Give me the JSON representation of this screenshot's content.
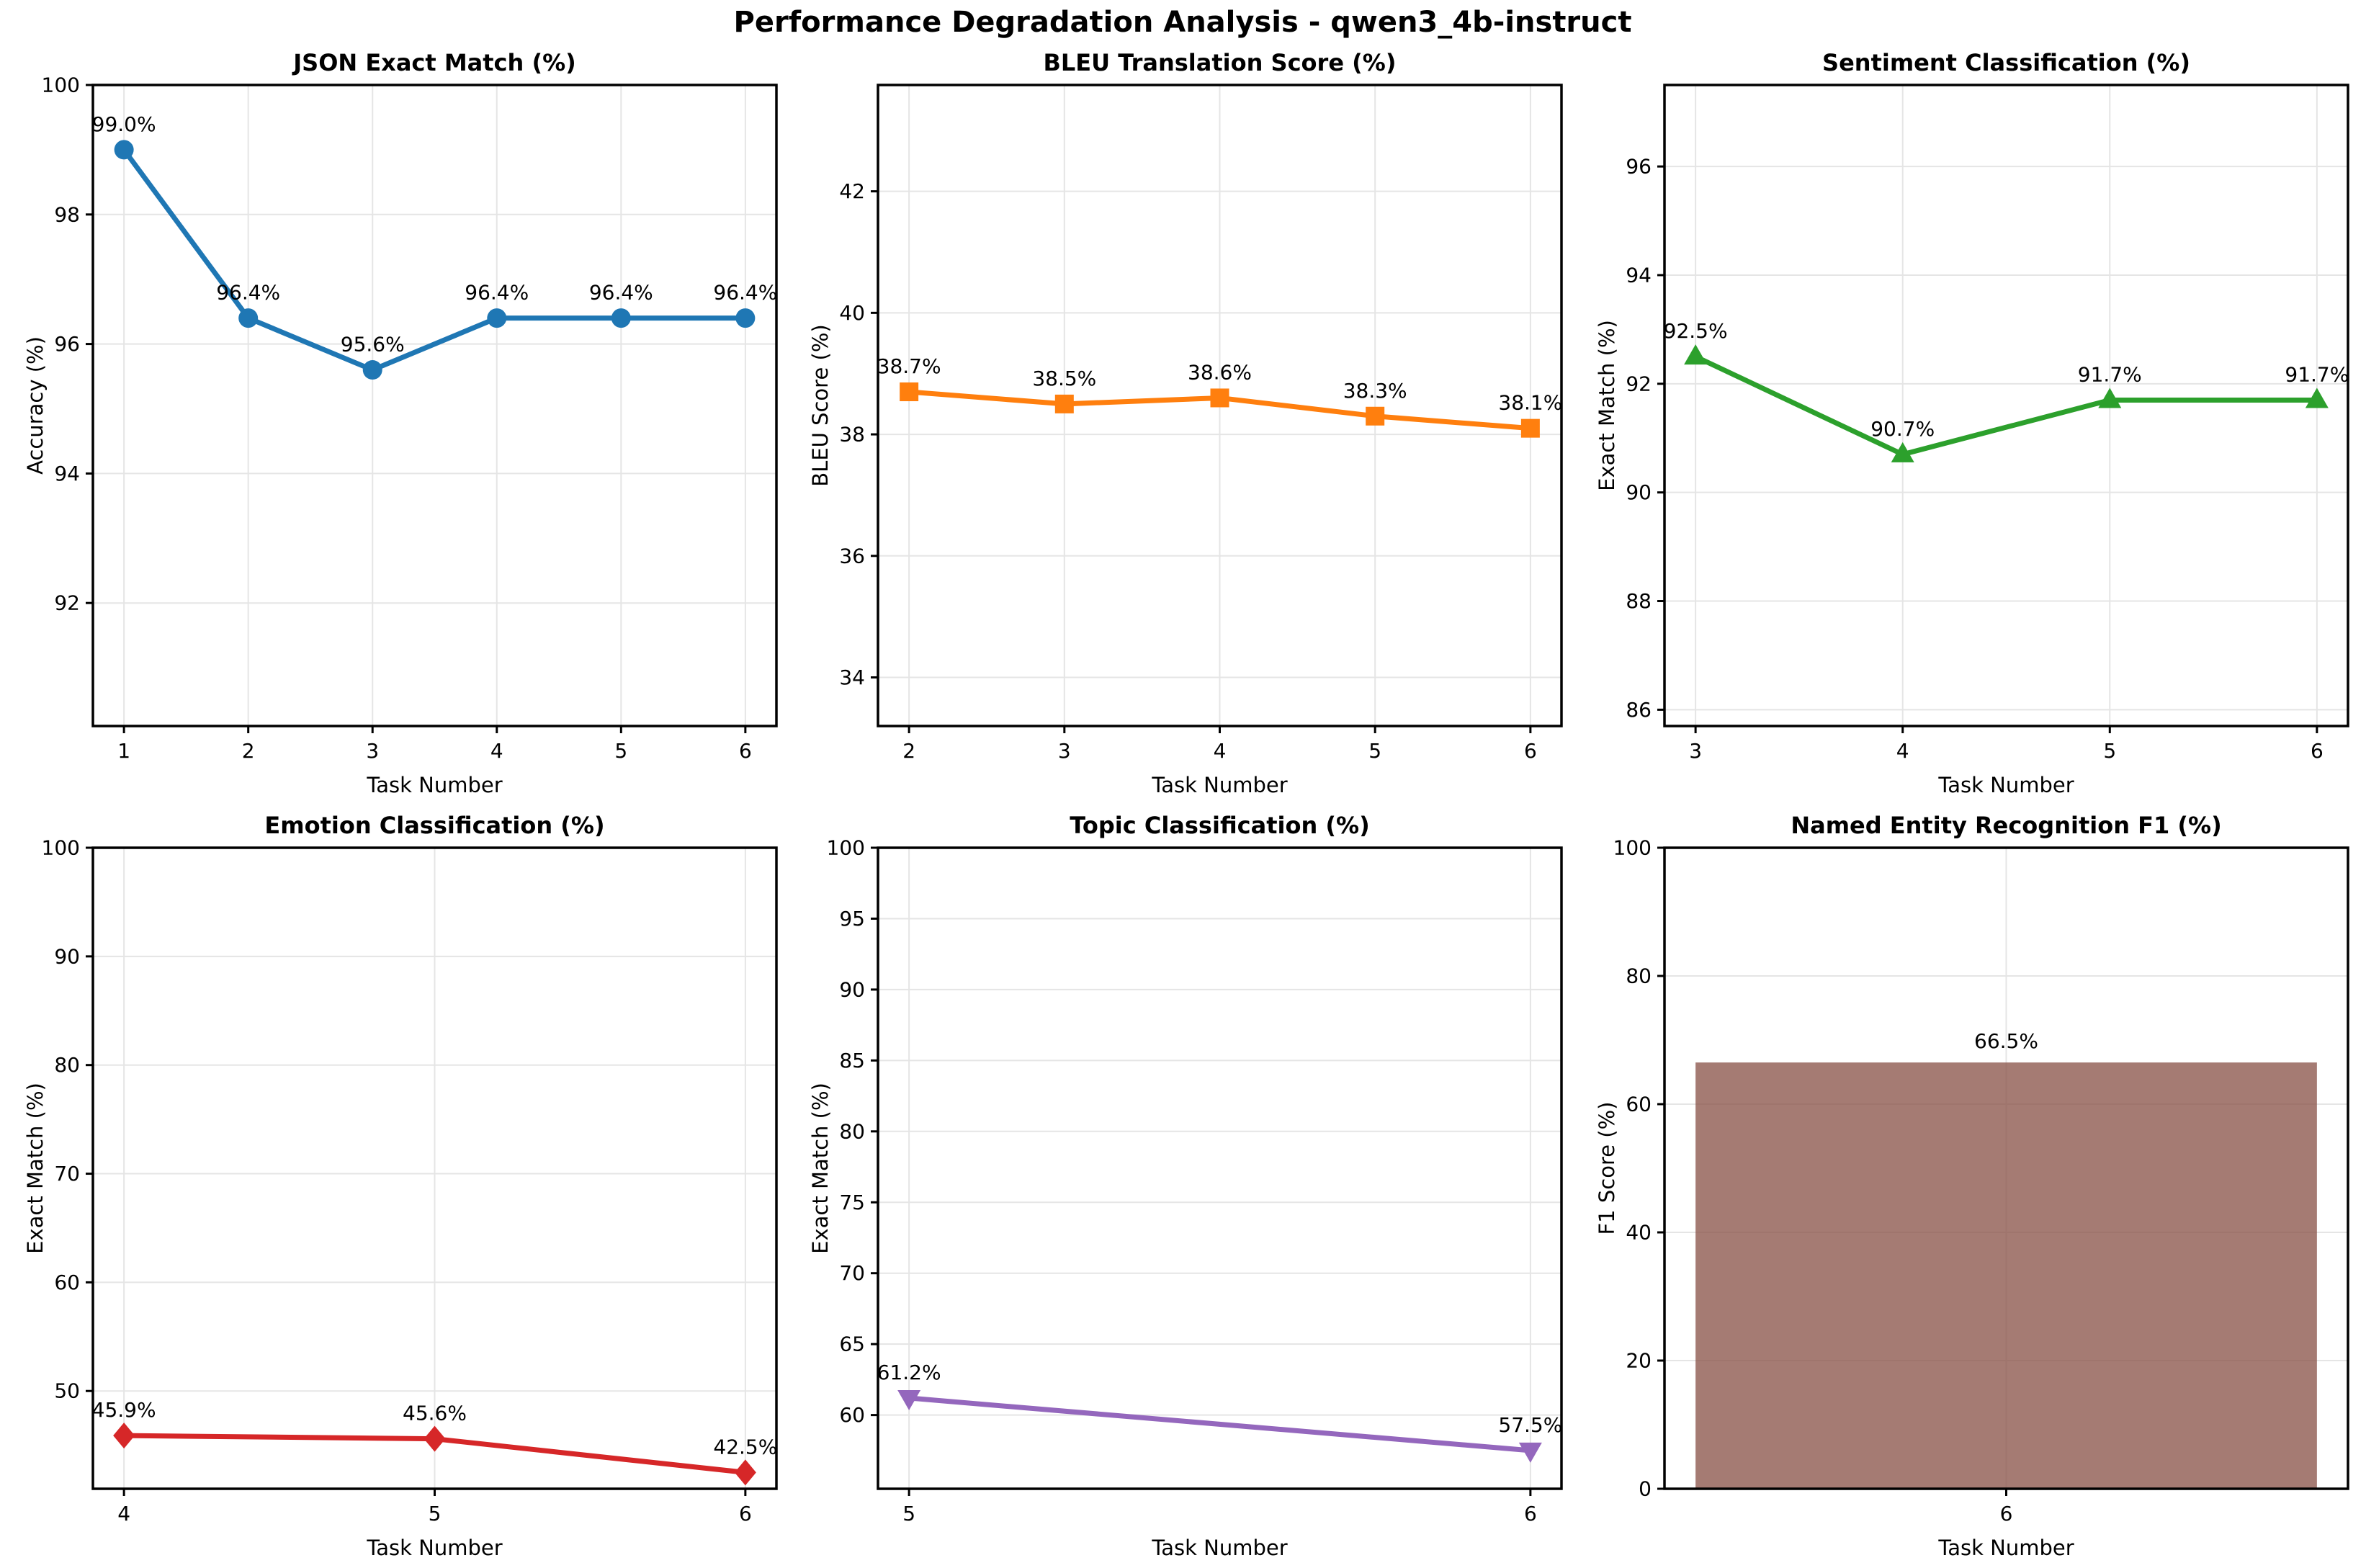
{
  "figure": {
    "title": "Performance Degradation Analysis - qwen3_4b-instruct",
    "xlabel_shared": "Task Number"
  },
  "chart_data": [
    {
      "type": "line",
      "title": "JSON Exact Match (%)",
      "xlabel": "Task Number",
      "ylabel": "Accuracy (%)",
      "marker": "circle",
      "color": "#1f77b4",
      "x": [
        1,
        2,
        3,
        4,
        5,
        6
      ],
      "values": [
        99.0,
        96.4,
        95.6,
        96.4,
        96.4,
        96.4
      ],
      "point_labels": [
        "99.0%",
        "96.4%",
        "95.6%",
        "96.4%",
        "96.4%",
        "96.4%"
      ],
      "xticks": [
        1,
        2,
        3,
        4,
        5,
        6
      ],
      "yticks": [
        92,
        94,
        96,
        98,
        100
      ],
      "xlim": [
        0.75,
        6.25
      ],
      "ylim": [
        90.1,
        100
      ],
      "grid": true
    },
    {
      "type": "line",
      "title": "BLEU Translation Score (%)",
      "xlabel": "Task Number",
      "ylabel": "BLEU Score (%)",
      "marker": "square",
      "color": "#ff7f0e",
      "x": [
        2,
        3,
        4,
        5,
        6
      ],
      "values": [
        38.7,
        38.5,
        38.6,
        38.3,
        38.1
      ],
      "point_labels": [
        "38.7%",
        "38.5%",
        "38.6%",
        "38.3%",
        "38.1%"
      ],
      "xticks": [
        2,
        3,
        4,
        5,
        6
      ],
      "yticks": [
        34,
        36,
        38,
        40,
        42
      ],
      "xlim": [
        1.8,
        6.2
      ],
      "ylim": [
        33.2,
        43.75
      ],
      "grid": true
    },
    {
      "type": "line",
      "title": "Sentiment Classification (%)",
      "xlabel": "Task Number",
      "ylabel": "Exact Match (%)",
      "marker": "triangle-up",
      "color": "#2ca02c",
      "x": [
        3,
        4,
        5,
        6
      ],
      "values": [
        92.5,
        90.7,
        91.7,
        91.7
      ],
      "point_labels": [
        "92.5%",
        "90.7%",
        "91.7%",
        "91.7%"
      ],
      "xticks": [
        3,
        4,
        5,
        6
      ],
      "yticks": [
        86,
        88,
        90,
        92,
        94,
        96
      ],
      "xlim": [
        2.85,
        6.15
      ],
      "ylim": [
        85.7,
        97.5
      ],
      "grid": true
    },
    {
      "type": "line",
      "title": "Emotion Classification (%)",
      "xlabel": "Task Number",
      "ylabel": "Exact Match (%)",
      "marker": "diamond",
      "color": "#d62728",
      "x": [
        4,
        5,
        6
      ],
      "values": [
        45.9,
        45.6,
        42.5
      ],
      "point_labels": [
        "45.9%",
        "45.6%",
        "42.5%"
      ],
      "xticks": [
        4,
        5,
        6
      ],
      "yticks": [
        50,
        60,
        70,
        80,
        90,
        100
      ],
      "xlim": [
        3.9,
        6.1
      ],
      "ylim": [
        41,
        100
      ],
      "grid": true
    },
    {
      "type": "line",
      "title": "Topic Classification (%)",
      "xlabel": "Task Number",
      "ylabel": "Exact Match (%)",
      "marker": "triangle-down",
      "color": "#9467bd",
      "x": [
        5,
        6
      ],
      "values": [
        61.2,
        57.5
      ],
      "point_labels": [
        "61.2%",
        "57.5%"
      ],
      "xticks": [
        5,
        6
      ],
      "yticks": [
        60,
        65,
        70,
        75,
        80,
        85,
        90,
        95,
        100
      ],
      "xlim": [
        4.95,
        6.05
      ],
      "ylim": [
        54.8,
        100
      ],
      "grid": true
    },
    {
      "type": "bar",
      "title": "Named Entity Recognition F1 (%)",
      "xlabel": "Task Number",
      "ylabel": "F1 Score (%)",
      "marker": "none",
      "color": "#8c564b",
      "bar_alpha": 0.78,
      "bar_width": 0.8,
      "x": [
        6
      ],
      "values": [
        66.5
      ],
      "point_labels": [
        "66.5%"
      ],
      "xticks": [
        6
      ],
      "yticks": [
        0,
        20,
        40,
        60,
        80,
        100
      ],
      "xlim": [
        5.56,
        6.44
      ],
      "ylim": [
        0,
        100
      ],
      "grid": true
    }
  ]
}
